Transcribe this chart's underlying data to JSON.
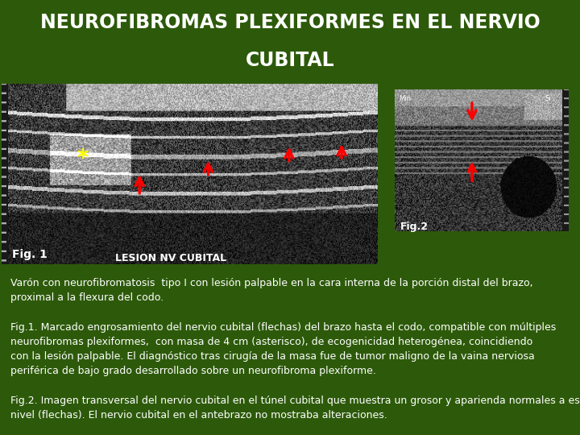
{
  "title_line1": "NEUROFIBROMAS PLEXIFORMES EN EL NERVIO",
  "title_line2": "CUBITAL",
  "title_bg_color": "#3a6b10",
  "title_text_color": "#ffffff",
  "main_bg_color": "#2d5a0a",
  "text_block1": "Varón con neurofibromatosis  tipo I con lesión palpable en la cara interna de la porción distal del brazo,\nproximal a la flexura del codo.",
  "text_block2": "Fig.1. Marcado engrosamiento del nervio cubital (flechas) del brazo hasta el codo, compatible con múltiples\nneurofibromas plexiformes,  con masa de 4 cm (asterisco), de ecogenicidad heterogénea, coincidiendo\ncon la lesión palpable. El diagnóstico tras cirugía de la masa fue de tumor maligno de la vaina nerviosa\nperiférica de bajo grado desarrollado sobre un neurofibroma plexiforme.",
  "text_block3": "Fig.2. Imagen transversal del nervio cubital en el túnel cubital que muestra un grosor y aparienda normales a ese\nnivel (flechas). El nervio cubital en el antebrazo no mostraba alteraciones.",
  "text_color": "#ffffff",
  "fig1_label": "Fig. 1",
  "fig2_label": "Fig.2",
  "fig1_sublabel": "LESION NV CUBITAL",
  "title_fontsize": 17,
  "body_fontsize": 9.0
}
